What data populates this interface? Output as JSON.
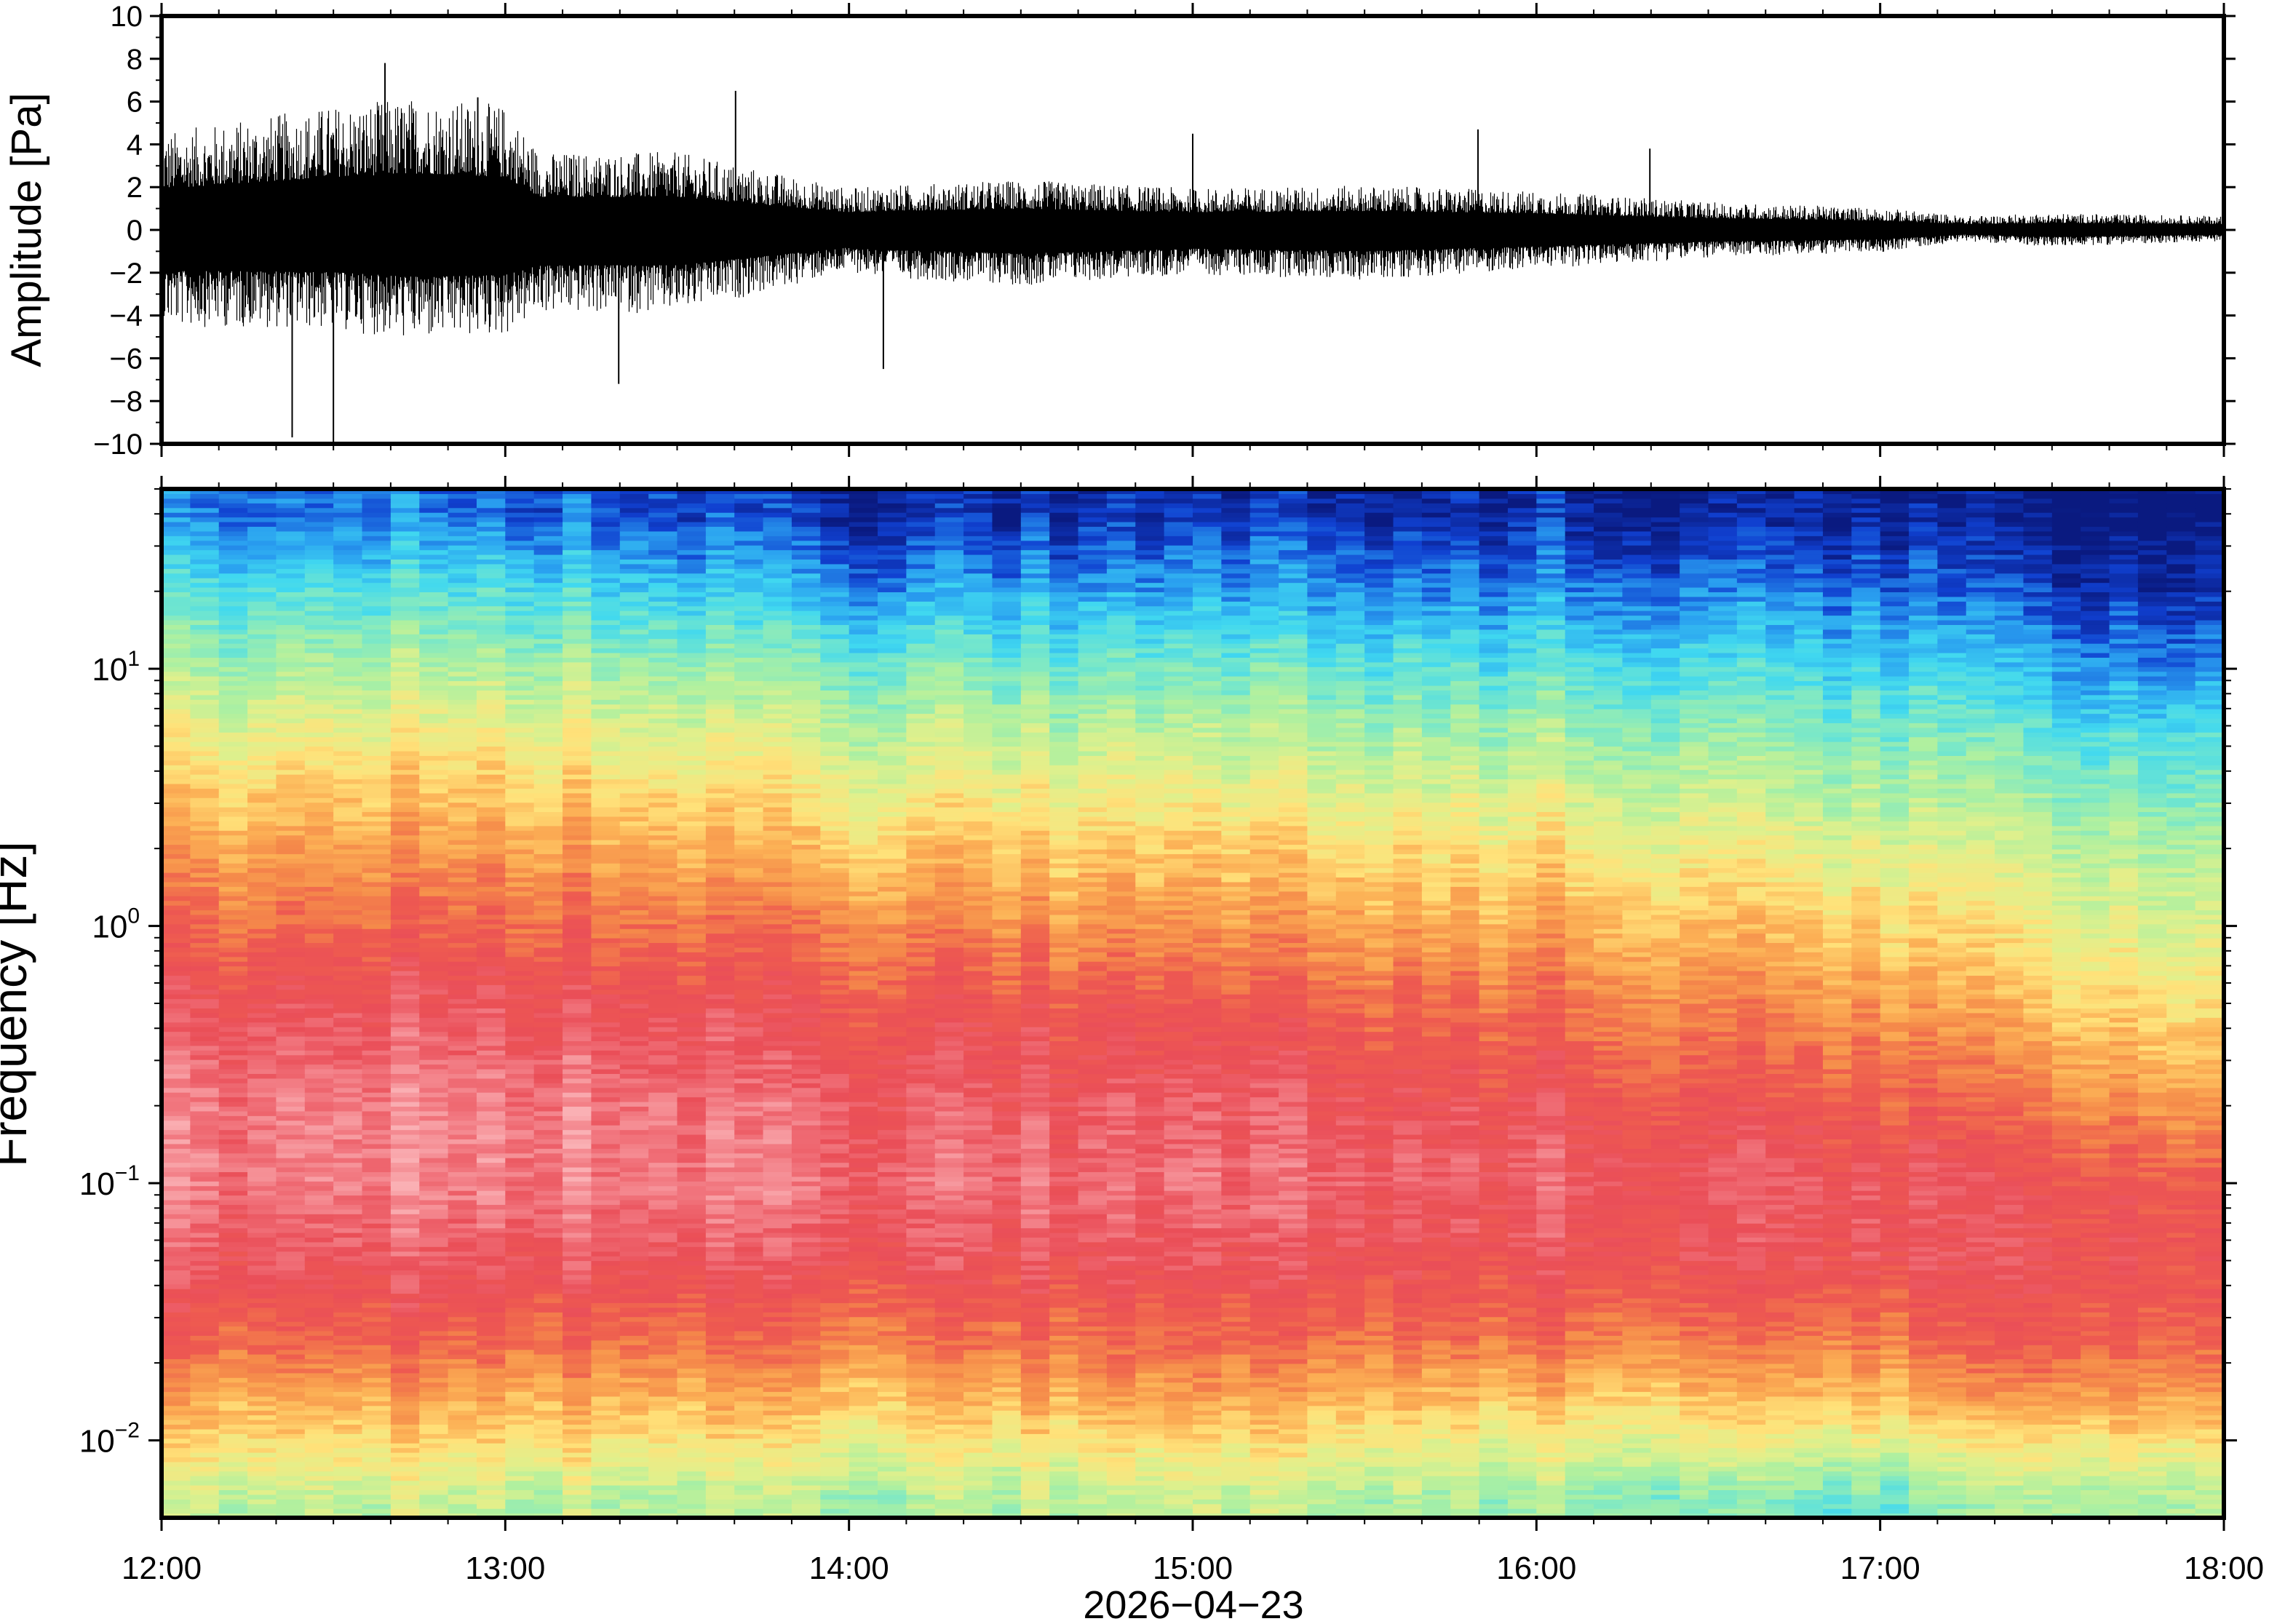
{
  "chart_data": [
    {
      "type": "line",
      "title": "",
      "xlabel": "",
      "ylabel": "Amplitude [Pa]",
      "ylim": [
        -10,
        10
      ],
      "y_ticks": [
        10,
        8,
        6,
        4,
        2,
        0,
        -2,
        -4,
        -6,
        -8,
        -10
      ],
      "y_tick_labels": [
        "10",
        "8",
        "6",
        "4",
        "2",
        "0",
        "−2",
        "−4",
        "−6",
        "−8",
        "−10"
      ],
      "xlim": [
        "12:00",
        "18:00"
      ],
      "grid": false,
      "series": [
        {
          "envelope_time_hours": [
            0,
            0.25,
            0.5,
            0.75,
            1.0,
            1.1,
            1.5,
            2.0,
            2.1,
            2.5,
            3.0,
            3.5,
            4.0,
            4.5,
            5.0,
            5.25,
            5.5,
            6.0
          ],
          "envelope_upper_pa": [
            3.5,
            4.0,
            4.5,
            4.8,
            4.5,
            2.8,
            2.8,
            1.5,
            1.6,
            1.8,
            1.5,
            1.6,
            1.4,
            1.0,
            0.8,
            0.5,
            0.6,
            0.5
          ],
          "envelope_lower_pa": [
            -3.5,
            -3.5,
            -3.6,
            -4.0,
            -3.8,
            -3.0,
            -3.0,
            -1.5,
            -1.7,
            -2.0,
            -1.6,
            -1.8,
            -1.4,
            -1.0,
            -0.8,
            -0.4,
            -0.6,
            -0.4
          ],
          "spike_time_hours": [
            0.38,
            0.5,
            0.65,
            0.92,
            1.33,
            1.67,
            2.1,
            3.0,
            3.83,
            4.33
          ],
          "spike_pa": [
            -9.7,
            -10.0,
            7.8,
            6.2,
            -7.2,
            6.5,
            -6.5,
            4.5,
            4.7,
            3.8
          ],
          "color": "#000000"
        }
      ]
    },
    {
      "type": "heatmap",
      "title": "",
      "xlabel": "2026−04−23",
      "ylabel": "Frequency [Hz]",
      "y_scale": "log",
      "ylim": [
        0.005,
        50
      ],
      "xlim": [
        "12:00",
        "18:00"
      ],
      "x_tick_labels": [
        "12:00",
        "13:00",
        "14:00",
        "15:00",
        "16:00",
        "17:00",
        "18:00"
      ],
      "y_tick_labels": [
        {
          "base": "10",
          "exp": "1"
        },
        {
          "base": "10",
          "exp": "0"
        },
        {
          "base": "10",
          "exp": "−1"
        },
        {
          "base": "10",
          "exp": "−2"
        }
      ],
      "colormap": "rainbow (navy low → cyan → yellow → orange → red → pink high)",
      "colormap_hex": [
        "#0a1a80",
        "#1040d0",
        "#2aa0f0",
        "#40d8f0",
        "#7ae8c8",
        "#aef0a0",
        "#e0f08c",
        "#ffe27a",
        "#fcb055",
        "#f58a4a",
        "#ee5a50",
        "#ea4e58",
        "#f27a82",
        "#fab0b4"
      ],
      "time_hours": [
        0,
        1,
        2,
        3,
        4,
        5,
        5.5,
        6
      ],
      "frequency_hz": [
        0.006,
        0.008,
        0.015,
        0.025,
        0.05,
        0.1,
        0.2,
        0.5,
        1,
        2,
        5,
        10,
        20,
        40
      ],
      "relative_power": [
        [
          0.42,
          0.42,
          0.38,
          0.42,
          0.38,
          0.3,
          0.4,
          0.42
        ],
        [
          0.5,
          0.5,
          0.45,
          0.48,
          0.45,
          0.4,
          0.48,
          0.48
        ],
        [
          0.64,
          0.64,
          0.6,
          0.64,
          0.6,
          0.6,
          0.68,
          0.66
        ],
        [
          0.76,
          0.76,
          0.72,
          0.74,
          0.74,
          0.72,
          0.8,
          0.76
        ],
        [
          0.86,
          0.86,
          0.84,
          0.84,
          0.84,
          0.84,
          0.84,
          0.82
        ],
        [
          0.92,
          0.94,
          0.9,
          0.9,
          0.88,
          0.86,
          0.82,
          0.8
        ],
        [
          0.92,
          0.94,
          0.88,
          0.86,
          0.84,
          0.78,
          0.72,
          0.66
        ],
        [
          0.84,
          0.86,
          0.8,
          0.78,
          0.74,
          0.66,
          0.58,
          0.54
        ],
        [
          0.74,
          0.76,
          0.7,
          0.66,
          0.64,
          0.56,
          0.5,
          0.46
        ],
        [
          0.64,
          0.66,
          0.58,
          0.56,
          0.54,
          0.46,
          0.42,
          0.4
        ],
        [
          0.5,
          0.52,
          0.44,
          0.42,
          0.4,
          0.34,
          0.3,
          0.28
        ],
        [
          0.38,
          0.4,
          0.32,
          0.3,
          0.28,
          0.24,
          0.18,
          0.16
        ],
        [
          0.26,
          0.27,
          0.16,
          0.16,
          0.15,
          0.12,
          0.07,
          0.05
        ],
        [
          0.12,
          0.12,
          0.04,
          0.04,
          0.04,
          0.02,
          0.0,
          0.0
        ]
      ]
    }
  ]
}
